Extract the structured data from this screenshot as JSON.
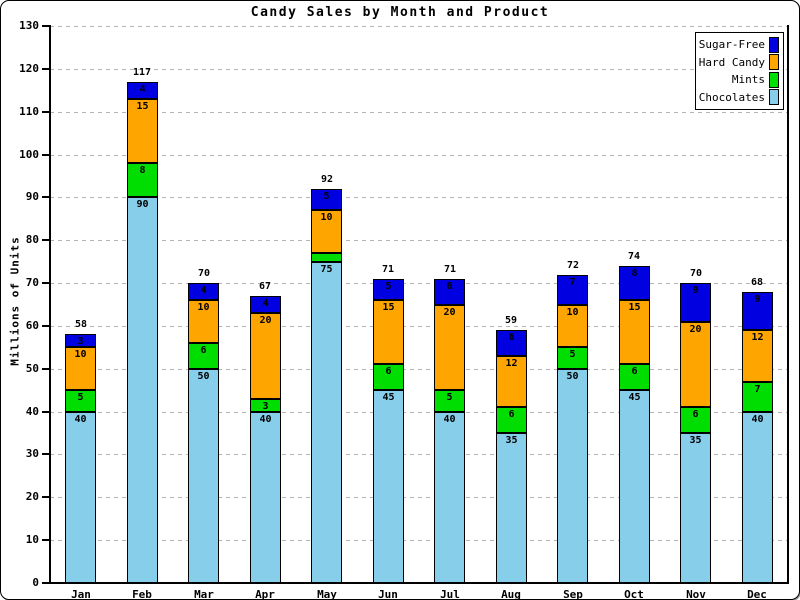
{
  "chart_data": {
    "type": "bar",
    "stacked": true,
    "title": "Candy Sales by Month and Product",
    "ylabel": "Millions of Units",
    "xlabel": "",
    "ylim": [
      0,
      130
    ],
    "ytick_step": 10,
    "grid": true,
    "legend_position": "top-right",
    "categories": [
      "Jan",
      "Feb",
      "Mar",
      "Apr",
      "May",
      "Jun",
      "Jul",
      "Aug",
      "Sep",
      "Oct",
      "Nov",
      "Dec"
    ],
    "series": [
      {
        "name": "Chocolates",
        "color": "#87CEEB",
        "values": [
          40,
          90,
          50,
          40,
          75,
          45,
          40,
          35,
          50,
          45,
          35,
          40
        ]
      },
      {
        "name": "Mints",
        "color": "#00DD00",
        "values": [
          5,
          8,
          6,
          3,
          2,
          6,
          5,
          6,
          5,
          6,
          6,
          7
        ]
      },
      {
        "name": "Hard Candy",
        "color": "#FFA500",
        "values": [
          10,
          15,
          10,
          20,
          10,
          15,
          20,
          12,
          10,
          15,
          20,
          12
        ]
      },
      {
        "name": "Sugar-Free",
        "color": "#0000E0",
        "values": [
          3,
          4,
          4,
          4,
          5,
          5,
          6,
          6,
          7,
          8,
          9,
          9
        ]
      }
    ],
    "totals": [
      58,
      117,
      70,
      67,
      92,
      71,
      71,
      59,
      72,
      74,
      70,
      68
    ],
    "legend": [
      {
        "label": "Sugar-Free",
        "color": "#0000E0"
      },
      {
        "label": "Hard Candy",
        "color": "#FFA500"
      },
      {
        "label": "Mints",
        "color": "#00DD00"
      },
      {
        "label": "Chocolates",
        "color": "#87CEEB"
      }
    ],
    "gridline_color": "#b4b4b4",
    "axis_color": "#000000"
  }
}
